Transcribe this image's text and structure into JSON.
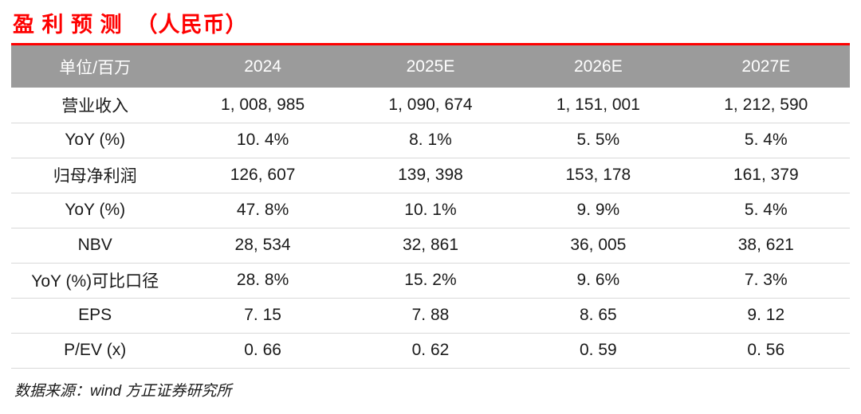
{
  "title": "盈 利 预 测  （人民币）",
  "colors": {
    "title_red": "#fe0000",
    "header_bg": "#9b9b9b",
    "header_text": "#ffffff",
    "body_text": "#1a1a1a",
    "divider": "#d9d9d9"
  },
  "table": {
    "columns": [
      "单位/百万",
      "2024",
      "2025E",
      "2026E",
      "2027E"
    ],
    "rows": [
      {
        "label": "营业收入",
        "values": [
          "1, 008, 985",
          "1, 090, 674",
          "1, 151, 001",
          "1, 212, 590"
        ]
      },
      {
        "label": "YoY (%)",
        "values": [
          "10. 4%",
          "8. 1%",
          "5. 5%",
          "5. 4%"
        ]
      },
      {
        "label": "归母净利润",
        "values": [
          "126, 607",
          "139, 398",
          "153, 178",
          "161, 379"
        ]
      },
      {
        "label": "YoY (%)",
        "values": [
          "47. 8%",
          "10. 1%",
          "9. 9%",
          "5. 4%"
        ]
      },
      {
        "label": "NBV",
        "values": [
          "28, 534",
          "32, 861",
          "36, 005",
          "38, 621"
        ]
      },
      {
        "label": "YoY (%)可比口径",
        "values": [
          "28. 8%",
          "15. 2%",
          "9. 6%",
          "7. 3%"
        ]
      },
      {
        "label": "EPS",
        "values": [
          "7. 15",
          "7. 88",
          "8. 65",
          "9. 12"
        ]
      },
      {
        "label": "P/EV (x)",
        "values": [
          "0. 66",
          "0. 62",
          "0. 59",
          "0. 56"
        ]
      }
    ]
  },
  "footer": {
    "source": "数据来源：wind 方正证券研究所"
  }
}
